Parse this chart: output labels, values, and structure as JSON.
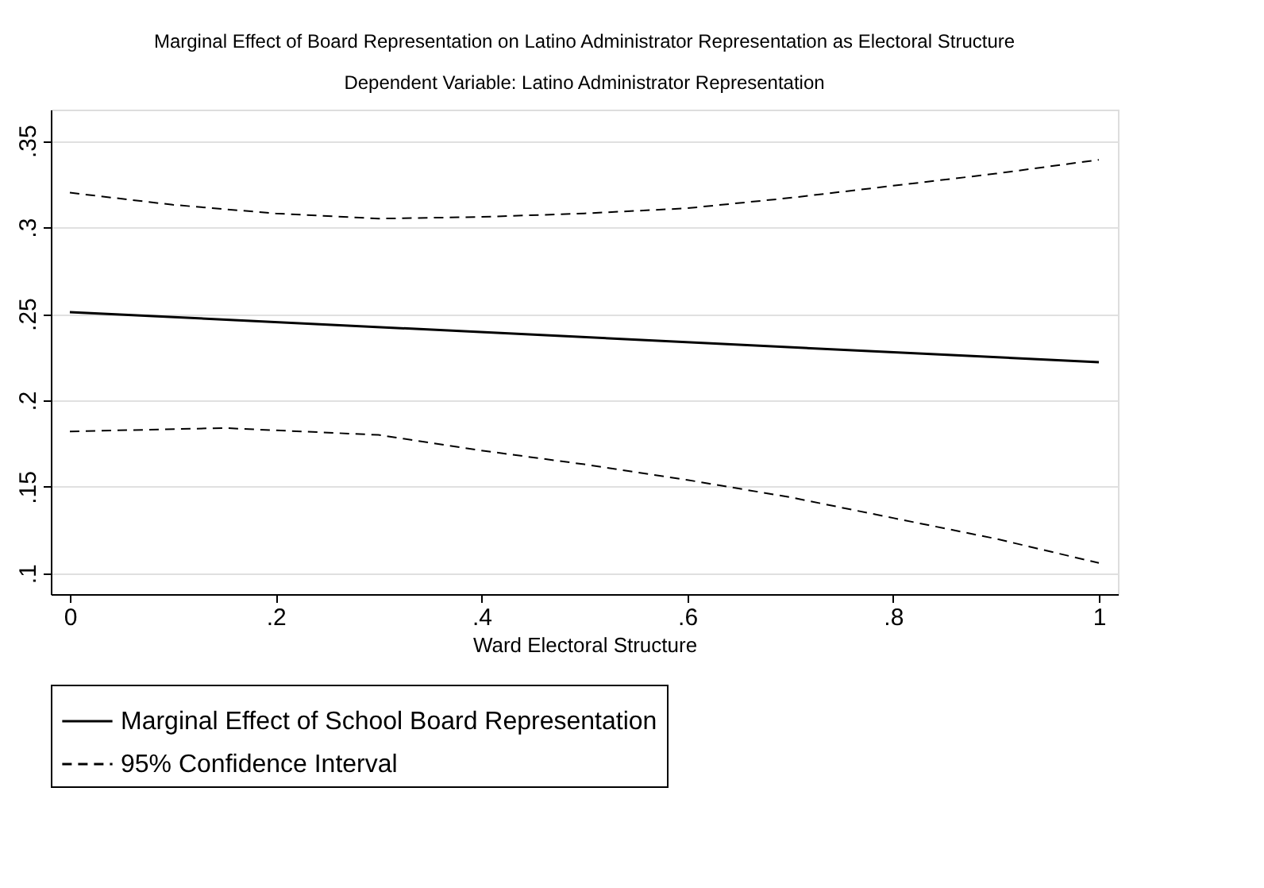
{
  "chart_data": {
    "type": "line",
    "title": "Marginal Effect of Board Representation on Latino Administrator Representation as Electoral Structure",
    "subtitle": "Dependent Variable: Latino  Administrator Representation",
    "xlabel": "Ward Electoral Structure",
    "xlim": [
      -0.0185,
      1.0185
    ],
    "xticks": [
      0,
      {
        "value": 0.2,
        "label": ".2"
      },
      {
        "value": 0.4,
        "label": ".4"
      },
      {
        "value": 0.6,
        "label": ".6"
      },
      {
        "value": 0.8,
        "label": ".8"
      },
      1
    ],
    "ylim": [
      0.088,
      0.368
    ],
    "yticks": [
      {
        "value": 0.1,
        "label": ".1"
      },
      {
        "value": 0.15,
        "label": ".15"
      },
      {
        "value": 0.2,
        "label": ".2"
      },
      {
        "value": 0.25,
        "label": ".25"
      },
      {
        "value": 0.3,
        "label": ".3"
      },
      {
        "value": 0.35,
        "label": ".35"
      }
    ],
    "grid": "y",
    "legend": "bottom",
    "series": [
      {
        "name": "Marginal Effect of School Board Representation",
        "color": "#000000",
        "line_style": "solid",
        "x": [
          0,
          1
        ],
        "values": [
          0.251,
          0.222
        ]
      },
      {
        "name": "95% Confidence Interval",
        "color": "#000000",
        "line_style": "dashed",
        "x": [
          0,
          0.1,
          0.2,
          0.3,
          0.4,
          0.5,
          0.6,
          0.7,
          0.8,
          0.9,
          1
        ],
        "values": [
          0.32,
          0.313,
          0.308,
          0.305,
          0.306,
          0.308,
          0.311,
          0.317,
          0.324,
          0.331,
          0.339
        ]
      },
      {
        "color": "#000000",
        "line_style": "dashed",
        "x": [
          0,
          0.15,
          0.3,
          0.4,
          0.5,
          0.6,
          0.7,
          0.8,
          0.9,
          1
        ],
        "values": [
          0.182,
          0.184,
          0.18,
          0.171,
          0.163,
          0.154,
          0.144,
          0.132,
          0.12,
          0.106
        ]
      }
    ]
  }
}
